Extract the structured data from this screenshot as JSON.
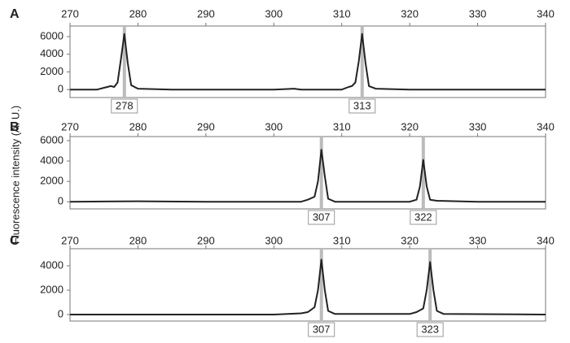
{
  "ylabel": "Fluorescence intensity (A. U.)",
  "chart_data": [
    {
      "type": "line",
      "panel": "A",
      "xlim": [
        270,
        340
      ],
      "xticks": [
        270,
        280,
        290,
        300,
        310,
        320,
        330,
        340
      ],
      "ylim": [
        -900,
        7200
      ],
      "yticks": [
        0,
        2000,
        4000,
        6000
      ],
      "color": "#222222",
      "peaks": [
        278,
        313
      ],
      "x": [
        270,
        274,
        275,
        276,
        276.5,
        277,
        277.5,
        278,
        278.5,
        279,
        280,
        285,
        290,
        300,
        303,
        304,
        305,
        310,
        311,
        311.5,
        312,
        312.5,
        313,
        313.5,
        314,
        315,
        320,
        330,
        340
      ],
      "values": [
        0,
        0,
        200,
        400,
        300,
        800,
        3500,
        6300,
        3000,
        500,
        100,
        0,
        0,
        0,
        100,
        0,
        0,
        0,
        300,
        400,
        800,
        3200,
        6300,
        3000,
        400,
        100,
        0,
        0,
        0
      ]
    },
    {
      "type": "line",
      "panel": "B",
      "xlim": [
        270,
        340
      ],
      "xticks": [
        270,
        280,
        290,
        300,
        310,
        320,
        330,
        340
      ],
      "ylim": [
        -700,
        6400
      ],
      "yticks": [
        0,
        2000,
        4000,
        6000
      ],
      "color": "#222222",
      "peaks": [
        307,
        322
      ],
      "x": [
        270,
        280,
        290,
        300,
        304,
        305,
        306,
        306.5,
        307,
        307.5,
        308,
        309,
        315,
        320,
        321,
        321.5,
        322,
        322.5,
        323,
        324,
        330,
        340
      ],
      "values": [
        0,
        50,
        0,
        0,
        0,
        200,
        500,
        2000,
        5100,
        2500,
        300,
        0,
        0,
        0,
        200,
        1500,
        4100,
        1500,
        200,
        100,
        0,
        0
      ]
    },
    {
      "type": "line",
      "panel": "C",
      "xlim": [
        270,
        340
      ],
      "xticks": [
        270,
        280,
        290,
        300,
        310,
        320,
        330,
        340
      ],
      "ylim": [
        -530,
        5400
      ],
      "yticks": [
        0,
        2000,
        4000
      ],
      "color": "#222222",
      "peaks": [
        307,
        323
      ],
      "x": [
        270,
        300,
        304,
        305,
        306,
        306.5,
        307,
        307.5,
        308,
        309,
        320,
        321,
        322,
        322.5,
        323,
        323.5,
        324,
        325,
        340
      ],
      "values": [
        0,
        0,
        100,
        200,
        600,
        2000,
        4500,
        2000,
        300,
        50,
        50,
        200,
        500,
        2000,
        4300,
        2000,
        300,
        50,
        0
      ]
    }
  ]
}
